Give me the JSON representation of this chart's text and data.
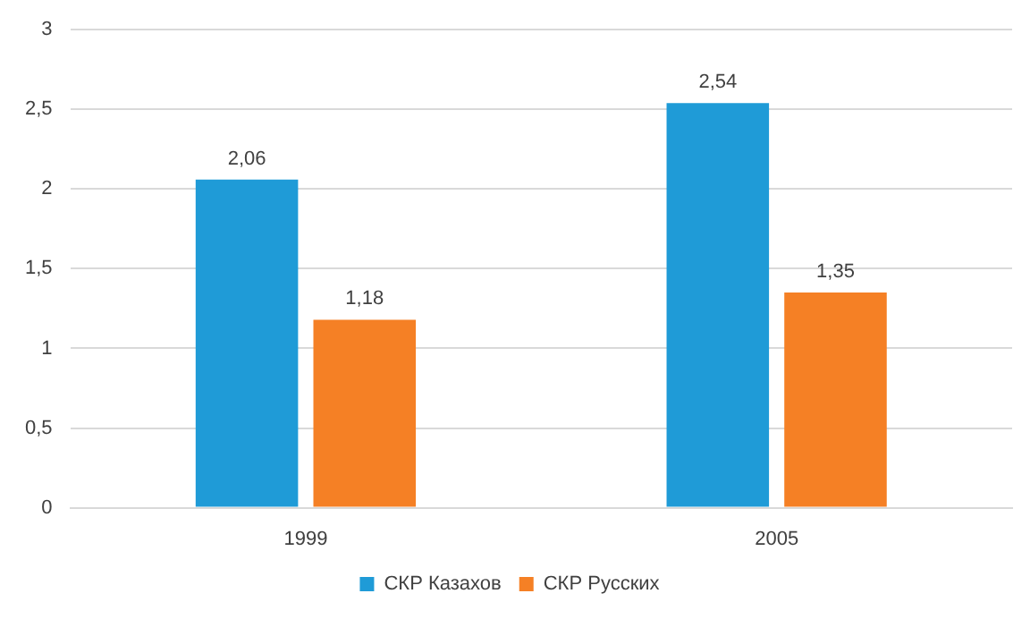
{
  "chart_data": {
    "type": "bar",
    "categories": [
      "1999",
      "2005"
    ],
    "series": [
      {
        "name": "СКР Казахов",
        "color": "#1f9bd7",
        "values": [
          2.06,
          2.54
        ],
        "value_labels": [
          "2,06",
          "2,54"
        ]
      },
      {
        "name": "СКР Русских",
        "color": "#f58025",
        "values": [
          1.18,
          1.35
        ],
        "value_labels": [
          "1,18",
          "1,35"
        ]
      }
    ],
    "ylim": [
      0,
      3
    ],
    "yticks": [
      0,
      {
        "value": 0.5,
        "label": "0,5"
      },
      1,
      {
        "value": 1.5,
        "label": "1,5"
      },
      2,
      {
        "value": 2.5,
        "label": "2,5"
      },
      3
    ],
    "grid": "y",
    "legend": "bottom"
  }
}
